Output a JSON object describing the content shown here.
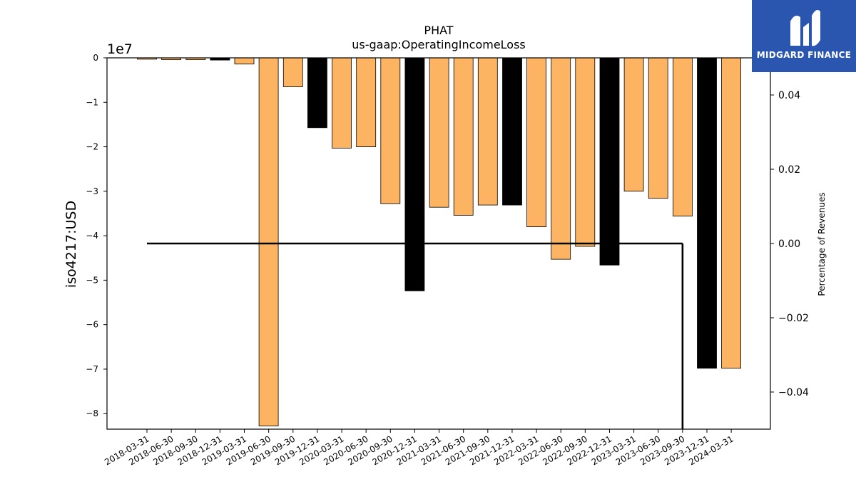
{
  "chart_data": {
    "type": "bar",
    "title": "PHAT",
    "subtitle": "us-gaap:OperatingIncomeLoss",
    "ylabel": "iso4217:USD",
    "y2label": "Percentage of Revenues",
    "y_scale_label": "1e7",
    "ylim": [
      -8.35,
      0
    ],
    "y2lim": [
      -0.05,
      0.05
    ],
    "yticks": [
      0,
      -1,
      -2,
      -3,
      -4,
      -5,
      -6,
      -7,
      -8
    ],
    "ytick_labels": [
      "0",
      "−1",
      "−2",
      "−3",
      "−4",
      "−5",
      "−6",
      "−7",
      "−8"
    ],
    "y2ticks": [
      0.04,
      0.02,
      0.0,
      -0.02,
      -0.04
    ],
    "y2tick_labels": [
      "0.04",
      "0.02",
      "0.00",
      "−0.02",
      "−0.04"
    ],
    "categories": [
      "2018-03-31",
      "2018-06-30",
      "2018-09-30",
      "2018-12-31",
      "2019-03-31",
      "2019-06-30",
      "2019-09-30",
      "2019-12-31",
      "2020-03-31",
      "2020-06-30",
      "2020-09-30",
      "2020-12-31",
      "2021-03-31",
      "2021-06-30",
      "2021-09-30",
      "2021-12-31",
      "2022-03-31",
      "2022-06-30",
      "2022-09-30",
      "2022-12-31",
      "2023-03-31",
      "2023-06-30",
      "2023-09-30",
      "2023-12-31",
      "2024-03-31"
    ],
    "values": [
      -0.03,
      -0.04,
      -0.04,
      -0.05,
      -0.14,
      -8.28,
      -0.65,
      -1.57,
      -2.03,
      -2.0,
      -3.28,
      -5.24,
      -3.36,
      -3.54,
      -3.31,
      -3.31,
      -3.8,
      -4.53,
      -4.24,
      -4.66,
      -3.0,
      -3.16,
      -3.56,
      -6.98,
      -6.98
    ],
    "bar_colors": [
      "#fdb462",
      "#fdb462",
      "#fdb462",
      "#000000",
      "#fdb462",
      "#fdb462",
      "#fdb462",
      "#000000",
      "#fdb462",
      "#fdb462",
      "#fdb462",
      "#000000",
      "#fdb462",
      "#fdb462",
      "#fdb462",
      "#000000",
      "#fdb462",
      "#fdb462",
      "#fdb462",
      "#000000",
      "#fdb462",
      "#fdb462",
      "#fdb462",
      "#000000",
      "#fdb462"
    ],
    "ratio_line": {
      "x": [
        "2018-03-31",
        "2023-09-30"
      ],
      "y": [
        0.0,
        0.0
      ]
    },
    "ratio_drop": {
      "x": "2023-09-30",
      "y": [
        0.0,
        -0.05
      ]
    },
    "grid": false
  },
  "logo": {
    "text": "MIDGARD FINANCE",
    "color": "#2b56b0"
  }
}
